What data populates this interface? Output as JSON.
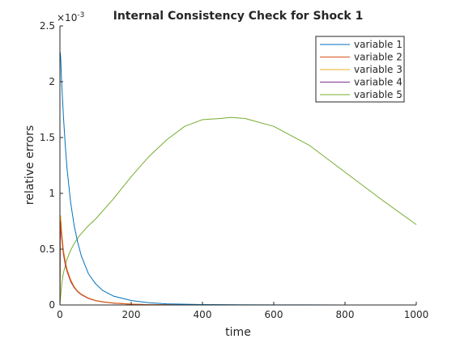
{
  "chart_data": {
    "type": "line",
    "title": "Internal Consistency Check for Shock 1",
    "xlabel": "time",
    "ylabel": "relative errors",
    "xlim": [
      0,
      1000
    ],
    "ylim": [
      0,
      0.0025
    ],
    "x_ticks": [
      0,
      200,
      400,
      600,
      800,
      1000
    ],
    "x_tick_labels": [
      "0",
      "200",
      "400",
      "600",
      "800",
      "1000"
    ],
    "y_ticks": [
      0,
      0.0005,
      0.001,
      0.0015,
      0.002,
      0.0025
    ],
    "y_tick_labels": [
      "0",
      "0.5",
      "1",
      "1.5",
      "2",
      "2.5"
    ],
    "y_exponent_label": "×10",
    "y_exponent_power": "-3",
    "grid": false,
    "legend_position": "top-right",
    "series": [
      {
        "name": "variable 1",
        "color": "#0072BD",
        "x": [
          0,
          1,
          2,
          5,
          10,
          15,
          20,
          30,
          40,
          50,
          60,
          80,
          100,
          120,
          150,
          200,
          250,
          300,
          400,
          500,
          600,
          800,
          1000
        ],
        "y": [
          0.00225,
          0.00226,
          0.00222,
          0.00198,
          0.00168,
          0.00143,
          0.00122,
          0.00092,
          0.00071,
          0.00056,
          0.00044,
          0.00028,
          0.00019,
          0.00013,
          8e-05,
          4e-05,
          2e-05,
          1e-05,
          4e-06,
          2e-06,
          1e-06,
          0,
          0
        ]
      },
      {
        "name": "variable 2",
        "color": "#D95319",
        "x": [
          0,
          1,
          2,
          5,
          10,
          15,
          20,
          30,
          40,
          50,
          60,
          80,
          100,
          120,
          150,
          200,
          250,
          300,
          400,
          500,
          600,
          800,
          1000
        ],
        "y": [
          0,
          0.0006,
          0.00075,
          0.00062,
          0.00047,
          0.00038,
          0.00031,
          0.00022,
          0.00016,
          0.00012,
          9.5e-05,
          6e-05,
          4e-05,
          2.8e-05,
          1.7e-05,
          7e-06,
          3e-06,
          1.5e-06,
          5e-07,
          0,
          0,
          0,
          0
        ]
      },
      {
        "name": "variable 3",
        "color": "#EDB120",
        "x": [
          0,
          1,
          2,
          5,
          10,
          15,
          20,
          30,
          40,
          50,
          60,
          80,
          100,
          120,
          150,
          200,
          250,
          300,
          400,
          500,
          600,
          800,
          1000
        ],
        "y": [
          0,
          0.00065,
          0.0008,
          0.00065,
          0.00049,
          0.0004,
          0.00032,
          0.00023,
          0.000165,
          0.000125,
          9.7e-05,
          6.2e-05,
          4.1e-05,
          2.9e-05,
          1.8e-05,
          8e-06,
          3e-06,
          1.5e-06,
          5e-07,
          0,
          0,
          0,
          0
        ]
      },
      {
        "name": "variable 4",
        "color": "#7E2F8E",
        "x": [
          0,
          1,
          2,
          5,
          10,
          15,
          20,
          30,
          40,
          50,
          60,
          80,
          100,
          120,
          150,
          200,
          250,
          300,
          400,
          500,
          600,
          800,
          1000
        ],
        "y": [
          0,
          0.00055,
          0.00072,
          0.0006,
          0.00045,
          0.00036,
          0.0003,
          0.00021,
          0.000155,
          0.000118,
          9.2e-05,
          5.8e-05,
          3.9e-05,
          2.7e-05,
          1.6e-05,
          7e-06,
          3e-06,
          1.4e-06,
          5e-07,
          0,
          0,
          0,
          0
        ]
      },
      {
        "name": "variable 5",
        "color": "#77AC30",
        "x": [
          0,
          5,
          10,
          20,
          30,
          40,
          50,
          60,
          80,
          100,
          150,
          200,
          250,
          300,
          350,
          400,
          450,
          480,
          520,
          600,
          700,
          800,
          900,
          1000
        ],
        "y": [
          0,
          0.00019,
          0.00029,
          0.00041,
          0.00049,
          0.00055,
          0.0006,
          0.00064,
          0.00071,
          0.00077,
          0.00095,
          0.00115,
          0.00133,
          0.00148,
          0.0016,
          0.00166,
          0.00167,
          0.00168,
          0.00167,
          0.0016,
          0.00143,
          0.00119,
          0.00095,
          0.00072
        ]
      }
    ]
  }
}
